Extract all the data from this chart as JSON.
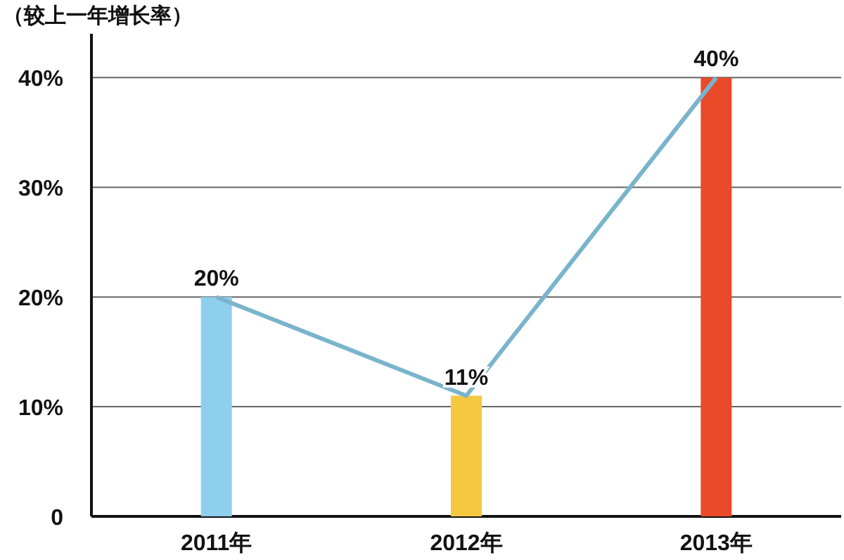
{
  "chart_data": {
    "type": "bar",
    "ylabel": "（较上一年增长率）",
    "categories": [
      "2011年",
      "2012年",
      "2013年"
    ],
    "series": [
      {
        "colors": [
          "#8ecfee",
          "#f5c842",
          "#e84a2a"
        ],
        "values": [
          20,
          11,
          40
        ],
        "value_labels": [
          "20%",
          "11%",
          "40%"
        ]
      },
      {
        "type": "line",
        "color": "#7ab4cc",
        "values": [
          20,
          11,
          40
        ]
      }
    ],
    "ylim": [
      0,
      44
    ],
    "yticks": [
      0,
      {
        "value": 10,
        "label": "10%"
      },
      {
        "value": 20,
        "label": "20%"
      },
      {
        "value": 30,
        "label": "30%"
      },
      {
        "value": 40,
        "label": "40%"
      }
    ],
    "grid": "y",
    "marker": "none"
  }
}
